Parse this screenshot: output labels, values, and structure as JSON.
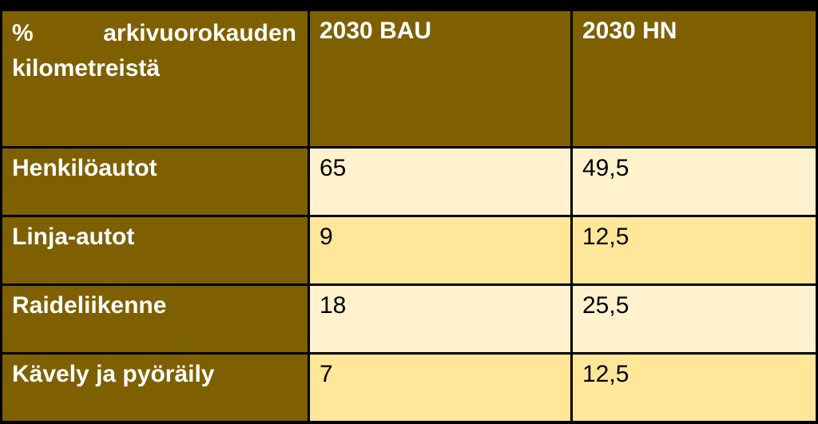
{
  "table": {
    "header": [
      "% arkivuorokauden kilometreistä",
      "2030 BAU",
      "2030 HN"
    ],
    "rows": [
      [
        "Henkilöautot",
        "65",
        "49,5"
      ],
      [
        "Linja-autot",
        "9",
        "12,5"
      ],
      [
        "Raideliikenne",
        "18",
        "25,5"
      ],
      [
        "Kävely ja pyöräily",
        "7",
        "12,5"
      ]
    ]
  }
}
